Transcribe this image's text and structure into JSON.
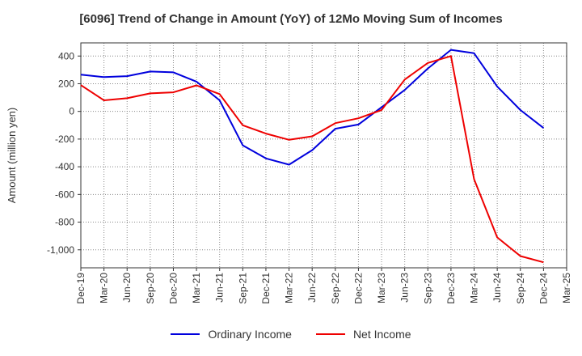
{
  "chart_data": {
    "type": "line",
    "title": "[6096]  Trend of Change in Amount (YoY) of 12Mo Moving Sum of Incomes",
    "ylabel": "Amount (million yen)",
    "xlabel": "",
    "x_tick_labels": [
      "Dec-19",
      "Mar-20",
      "Jun-20",
      "Sep-20",
      "Dec-20",
      "Mar-21",
      "Jun-21",
      "Sep-21",
      "Dec-21",
      "Mar-22",
      "Jun-22",
      "Sep-22",
      "Dec-22",
      "Mar-23",
      "Jun-23",
      "Sep-23",
      "Dec-23",
      "Mar-24",
      "Jun-24",
      "Sep-24",
      "Dec-24",
      "Mar-25"
    ],
    "ylim": [
      -1130,
      495
    ],
    "y_ticks": [
      400,
      200,
      0,
      -200,
      -400,
      -600,
      -800,
      -1000
    ],
    "y_tick_labels": [
      "400",
      "200",
      "0",
      "-200",
      "-400",
      "-600",
      "-800",
      "-1,000"
    ],
    "grid": true,
    "legend_position": "bottom-center",
    "series": [
      {
        "name": "Ordinary Income",
        "color": "#0000dd",
        "values": [
          265,
          248,
          255,
          288,
          282,
          215,
          80,
          -245,
          -340,
          -385,
          -280,
          -125,
          -95,
          30,
          155,
          310,
          445,
          420,
          180,
          10,
          -120
        ]
      },
      {
        "name": "Net Income",
        "color": "#ee0000",
        "values": [
          190,
          80,
          95,
          130,
          138,
          188,
          125,
          -100,
          -160,
          -205,
          -180,
          -85,
          -50,
          10,
          230,
          350,
          400,
          -490,
          -910,
          -1045,
          -1090
        ]
      }
    ]
  }
}
